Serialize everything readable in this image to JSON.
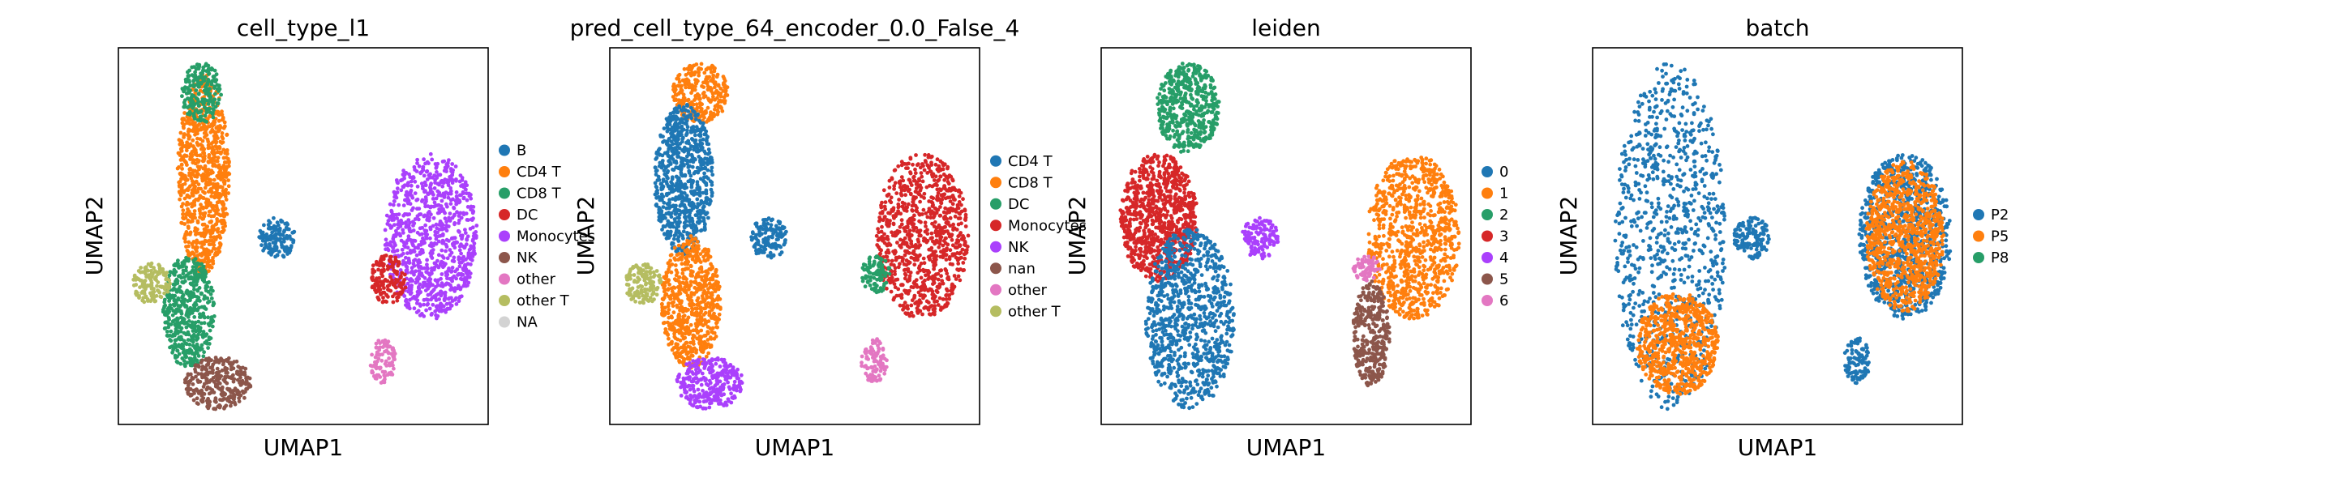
{
  "figure": {
    "type": "UMAP embedding panels"
  },
  "chart_data": [
    {
      "type": "scatter",
      "title": "cell_type_l1",
      "xlabel": "UMAP1",
      "ylabel": "UMAP2",
      "grid": false,
      "legend_position": "right",
      "legend": [
        {
          "label": "B",
          "color": "#1f77b4"
        },
        {
          "label": "CD4 T",
          "color": "#ff7f0e"
        },
        {
          "label": "CD8 T",
          "color": "#279e68"
        },
        {
          "label": "DC",
          "color": "#d62728"
        },
        {
          "label": "Monocytes",
          "color": "#aa40fc"
        },
        {
          "label": "NK",
          "color": "#8c564b"
        },
        {
          "label": "other",
          "color": "#e377c2"
        },
        {
          "label": "other T",
          "color": "#b5bd61"
        },
        {
          "label": "NA",
          "color": "#d3d3d3"
        }
      ],
      "regions": [
        {
          "category": "CD4 T",
          "x": [
            0.16,
            0.3
          ],
          "y": [
            0.4,
            0.93
          ]
        },
        {
          "category": "CD8 T",
          "x": [
            0.17,
            0.28
          ],
          "y": [
            0.8,
            0.96
          ]
        },
        {
          "category": "CD8 T",
          "x": [
            0.12,
            0.26
          ],
          "y": [
            0.15,
            0.45
          ]
        },
        {
          "category": "NK",
          "x": [
            0.18,
            0.36
          ],
          "y": [
            0.04,
            0.18
          ]
        },
        {
          "category": "other T",
          "x": [
            0.04,
            0.14
          ],
          "y": [
            0.32,
            0.43
          ]
        },
        {
          "category": "B",
          "x": [
            0.38,
            0.48
          ],
          "y": [
            0.44,
            0.55
          ]
        },
        {
          "category": "Monocytes",
          "x": [
            0.72,
            0.97
          ],
          "y": [
            0.28,
            0.72
          ]
        },
        {
          "category": "DC",
          "x": [
            0.68,
            0.78
          ],
          "y": [
            0.32,
            0.45
          ]
        },
        {
          "category": "other",
          "x": [
            0.68,
            0.75
          ],
          "y": [
            0.11,
            0.23
          ]
        }
      ]
    },
    {
      "type": "scatter",
      "title": "pred_cell_type_64_encoder_0.0_False_4",
      "xlabel": "UMAP1",
      "ylabel": "UMAP2",
      "grid": false,
      "legend_position": "right",
      "legend": [
        {
          "label": "CD4 T",
          "color": "#1f77b4"
        },
        {
          "label": "CD8 T",
          "color": "#ff7f0e"
        },
        {
          "label": "DC",
          "color": "#279e68"
        },
        {
          "label": "Monocytes",
          "color": "#d62728"
        },
        {
          "label": "NK",
          "color": "#aa40fc"
        },
        {
          "label": "nan",
          "color": "#8c564b"
        },
        {
          "label": "other",
          "color": "#e377c2"
        },
        {
          "label": "other T",
          "color": "#b5bd61"
        }
      ],
      "regions": [
        {
          "category": "CD8 T",
          "x": [
            0.17,
            0.32
          ],
          "y": [
            0.8,
            0.96
          ]
        },
        {
          "category": "CD4 T",
          "x": [
            0.12,
            0.28
          ],
          "y": [
            0.45,
            0.85
          ]
        },
        {
          "category": "CD8 T",
          "x": [
            0.14,
            0.3
          ],
          "y": [
            0.15,
            0.5
          ]
        },
        {
          "category": "NK",
          "x": [
            0.18,
            0.36
          ],
          "y": [
            0.04,
            0.18
          ]
        },
        {
          "category": "other T",
          "x": [
            0.04,
            0.14
          ],
          "y": [
            0.32,
            0.43
          ]
        },
        {
          "category": "CD4 T",
          "x": [
            0.38,
            0.48
          ],
          "y": [
            0.44,
            0.55
          ]
        },
        {
          "category": "Monocytes",
          "x": [
            0.72,
            0.97
          ],
          "y": [
            0.28,
            0.72
          ]
        },
        {
          "category": "DC",
          "x": [
            0.68,
            0.76
          ],
          "y": [
            0.35,
            0.45
          ]
        },
        {
          "category": "other",
          "x": [
            0.68,
            0.75
          ],
          "y": [
            0.11,
            0.23
          ]
        }
      ]
    },
    {
      "type": "scatter",
      "title": "leiden",
      "xlabel": "UMAP1",
      "ylabel": "UMAP2",
      "grid": false,
      "legend_position": "right",
      "legend": [
        {
          "label": "0",
          "color": "#1f77b4"
        },
        {
          "label": "1",
          "color": "#ff7f0e"
        },
        {
          "label": "2",
          "color": "#279e68"
        },
        {
          "label": "3",
          "color": "#d62728"
        },
        {
          "label": "4",
          "color": "#aa40fc"
        },
        {
          "label": "5",
          "color": "#8c564b"
        },
        {
          "label": "6",
          "color": "#e377c2"
        }
      ],
      "regions": [
        {
          "category": "2",
          "x": [
            0.15,
            0.32
          ],
          "y": [
            0.72,
            0.96
          ]
        },
        {
          "category": "3",
          "x": [
            0.05,
            0.26
          ],
          "y": [
            0.38,
            0.72
          ]
        },
        {
          "category": "0",
          "x": [
            0.12,
            0.36
          ],
          "y": [
            0.04,
            0.52
          ]
        },
        {
          "category": "4",
          "x": [
            0.38,
            0.48
          ],
          "y": [
            0.44,
            0.55
          ]
        },
        {
          "category": "1",
          "x": [
            0.72,
            0.97
          ],
          "y": [
            0.28,
            0.72
          ]
        },
        {
          "category": "6",
          "x": [
            0.68,
            0.76
          ],
          "y": [
            0.38,
            0.45
          ]
        },
        {
          "category": "5",
          "x": [
            0.68,
            0.78
          ],
          "y": [
            0.1,
            0.38
          ]
        }
      ]
    },
    {
      "type": "scatter",
      "title": "batch",
      "xlabel": "UMAP1",
      "ylabel": "UMAP2",
      "grid": false,
      "legend_position": "right",
      "legend": [
        {
          "label": "P2",
          "color": "#1f77b4"
        },
        {
          "label": "P5",
          "color": "#ff7f0e"
        },
        {
          "label": "P8",
          "color": "#279e68"
        }
      ],
      "regions": [
        {
          "category": "P2",
          "x": [
            0.06,
            0.36
          ],
          "y": [
            0.04,
            0.96
          ]
        },
        {
          "category": "P5",
          "x": [
            0.12,
            0.34
          ],
          "y": [
            0.08,
            0.35
          ]
        },
        {
          "category": "P2",
          "x": [
            0.38,
            0.48
          ],
          "y": [
            0.44,
            0.55
          ]
        },
        {
          "category": "P2",
          "x": [
            0.72,
            0.97
          ],
          "y": [
            0.28,
            0.72
          ]
        },
        {
          "category": "P5",
          "x": [
            0.74,
            0.95
          ],
          "y": [
            0.3,
            0.7
          ]
        },
        {
          "category": "P2",
          "x": [
            0.68,
            0.75
          ],
          "y": [
            0.11,
            0.23
          ]
        }
      ]
    }
  ]
}
